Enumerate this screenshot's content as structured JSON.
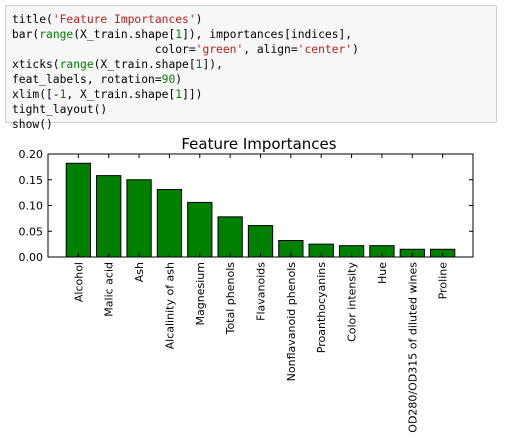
{
  "code_cell": {
    "lines": [
      [
        {
          "t": "title("
        },
        {
          "t": "'Feature Importances'",
          "c": "str"
        },
        {
          "t": ")"
        }
      ],
      [
        {
          "t": "bar("
        },
        {
          "t": "range",
          "c": "builtin"
        },
        {
          "t": "(X_train.shape["
        },
        {
          "t": "1",
          "c": "num"
        },
        {
          "t": "]), importances[indices],"
        }
      ],
      [
        {
          "t": "                     color="
        },
        {
          "t": "'green'",
          "c": "str"
        },
        {
          "t": ", align="
        },
        {
          "t": "'center'",
          "c": "str"
        },
        {
          "t": ")"
        }
      ],
      [
        {
          "t": "xticks("
        },
        {
          "t": "range",
          "c": "builtin"
        },
        {
          "t": "(X_train.shape["
        },
        {
          "t": "1",
          "c": "num"
        },
        {
          "t": "]),"
        }
      ],
      [
        {
          "t": "feat_labels, rotation="
        },
        {
          "t": "90",
          "c": "num"
        },
        {
          "t": ")"
        }
      ],
      [
        {
          "t": "xlim([-"
        },
        {
          "t": "1",
          "c": "num"
        },
        {
          "t": ", X_train.shape["
        },
        {
          "t": "1",
          "c": "num"
        },
        {
          "t": "]])"
        }
      ],
      [
        {
          "t": "tight_layout()"
        }
      ],
      [
        {
          "t": "show()"
        }
      ]
    ]
  },
  "colors": {
    "bar_fill": "#008000",
    "bar_stroke": "#000000",
    "string": "#ba2121",
    "builtin": "#008000",
    "number": "#008000"
  },
  "chart_data": {
    "type": "bar",
    "title": "Feature Importances",
    "xlabel": "",
    "ylabel": "",
    "categories": [
      "Alcohol",
      "Malic acid",
      "Ash",
      "Alcalinity of ash",
      "Magnesium",
      "Total phenols",
      "Flavanoids",
      "Nonflavanoid phenols",
      "Proanthocyanins",
      "Color intensity",
      "Hue",
      "OD280/OD315 of diluted wines",
      "Proline"
    ],
    "values": [
      0.182,
      0.158,
      0.15,
      0.131,
      0.106,
      0.078,
      0.061,
      0.032,
      0.025,
      0.022,
      0.022,
      0.015,
      0.015
    ],
    "xlim": [
      -1,
      13
    ],
    "ylim": [
      0,
      0.2
    ],
    "yticks": [
      "0.00",
      "0.05",
      "0.10",
      "0.15",
      "0.20"
    ],
    "grid": false,
    "legend": "none"
  }
}
